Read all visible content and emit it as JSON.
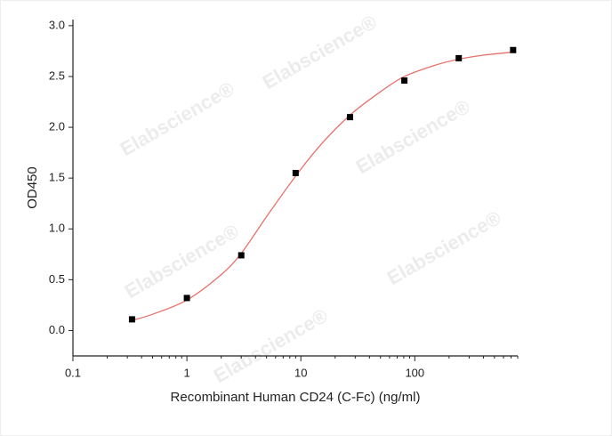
{
  "chart_data": {
    "type": "scatter",
    "xlabel": "Recombinant Human CD24 (C-Fc) (ng/ml)",
    "ylabel": "OD450",
    "watermark": "Elabscience®",
    "log_x": true,
    "x": [
      0.33,
      1,
      3,
      9,
      27,
      81,
      243,
      729
    ],
    "series": [
      {
        "color": "#000000",
        "values": [
          0.11,
          0.32,
          0.74,
          1.55,
          2.1,
          2.46,
          2.68,
          2.76
        ]
      }
    ],
    "fit": {
      "color": "#e8706a",
      "x": [
        0.33,
        0.5,
        1,
        2,
        3,
        5,
        9,
        15,
        27,
        50,
        81,
        150,
        243,
        400,
        729
      ],
      "values": [
        0.1,
        0.16,
        0.3,
        0.55,
        0.76,
        1.12,
        1.52,
        1.83,
        2.12,
        2.35,
        2.5,
        2.61,
        2.67,
        2.71,
        2.74
      ]
    },
    "xlim": [
      0.1,
      800
    ],
    "ylim": [
      -0.25,
      3.06
    ],
    "xticks": [
      0.1,
      1,
      10,
      100
    ],
    "xminorticks": [
      0.2,
      0.3,
      0.4,
      0.5,
      0.6,
      0.7,
      0.8,
      0.9,
      2,
      3,
      4,
      5,
      6,
      7,
      8,
      9,
      20,
      30,
      40,
      50,
      60,
      70,
      80,
      90,
      200,
      300,
      400,
      500,
      600,
      700,
      800
    ],
    "yticks": [
      {
        "value": 0,
        "label": "0.0"
      },
      0.5,
      {
        "value": 1,
        "label": "1.0"
      },
      1.5,
      {
        "value": 2,
        "label": "2.0"
      },
      2.5,
      {
        "value": 3,
        "label": "3.0"
      }
    ]
  }
}
